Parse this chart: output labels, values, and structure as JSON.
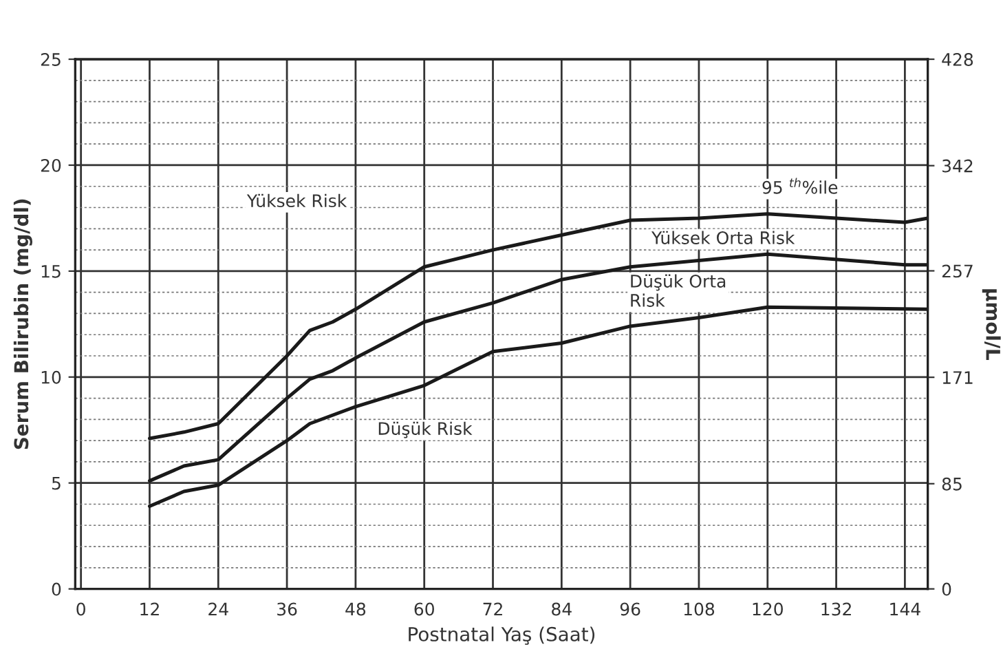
{
  "chart_data": {
    "type": "line",
    "xlabel": "Postnatal Yaş (Saat)",
    "ylabel": "Serum Bilirubin (mg/dl)",
    "y2label": "µmol/L",
    "xlim": [
      -1,
      148
    ],
    "xticks": [
      0,
      12,
      24,
      36,
      48,
      60,
      72,
      84,
      96,
      108,
      120,
      132,
      144
    ],
    "ylim": [
      0,
      25
    ],
    "yticks": [
      0,
      5,
      10,
      15,
      20,
      25
    ],
    "y2lim": [
      0,
      428
    ],
    "y2ticks": [
      0,
      85,
      171,
      257,
      342,
      428
    ],
    "grid": true,
    "line_style": "solid",
    "marker": "none",
    "series": [
      {
        "color": "#1a1a1a",
        "x": [
          12,
          18,
          24,
          36,
          40,
          44,
          48,
          60,
          72,
          84,
          96,
          108,
          120,
          132,
          144,
          148
        ],
        "values": [
          7.1,
          7.4,
          7.8,
          11.0,
          12.2,
          12.6,
          13.2,
          15.2,
          16.0,
          16.7,
          17.4,
          17.5,
          17.7,
          17.5,
          17.3,
          17.5
        ]
      },
      {
        "color": "#1a1a1a",
        "x": [
          12,
          18,
          24,
          36,
          40,
          44,
          48,
          60,
          72,
          84,
          96,
          120,
          144,
          148
        ],
        "values": [
          5.1,
          5.8,
          6.1,
          9.0,
          9.9,
          10.3,
          10.9,
          12.6,
          13.5,
          14.6,
          15.2,
          15.8,
          15.3,
          15.3
        ]
      },
      {
        "color": "#1a1a1a",
        "x": [
          12,
          18,
          24,
          36,
          40,
          48,
          60,
          72,
          84,
          96,
          108,
          120,
          148
        ],
        "values": [
          3.9,
          4.6,
          4.9,
          7.0,
          7.8,
          8.6,
          9.6,
          11.2,
          11.6,
          12.4,
          12.8,
          13.3,
          13.2
        ]
      }
    ],
    "annotations": [
      "Yüksek Risk",
      "95 $^{th}$%ile",
      "Yüksek Orta Risk",
      "Düşük Orta\nRisk",
      "Düşük Risk"
    ]
  }
}
